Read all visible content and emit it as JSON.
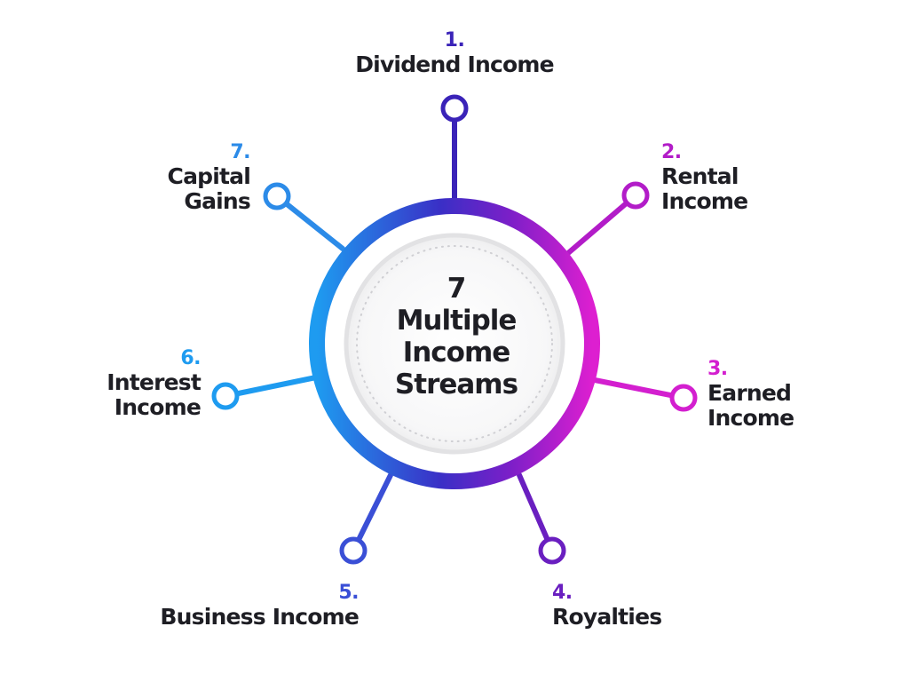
{
  "colors": {
    "blue": "#1e9bf0",
    "indigo": "#3a2fc6",
    "violet": "#6a1fc0",
    "magenta": "#d31fcf",
    "text": "#1e1e24"
  },
  "center": {
    "number": "7",
    "line1": "Multiple",
    "line2": "Income",
    "line3": "Streams"
  },
  "streams": [
    {
      "num": "1.",
      "lines": [
        "Dividend Income"
      ],
      "color": "#3a23b8"
    },
    {
      "num": "2.",
      "lines": [
        "Rental",
        "Income"
      ],
      "color": "#b21cc8"
    },
    {
      "num": "3.",
      "lines": [
        "Earned",
        "Income"
      ],
      "color": "#d31fcf"
    },
    {
      "num": "4.",
      "lines": [
        "Royalties"
      ],
      "color": "#6a1fc0"
    },
    {
      "num": "5.",
      "lines": [
        "Business Income"
      ],
      "color": "#3a4fd6"
    },
    {
      "num": "6.",
      "lines": [
        "Interest",
        "Income"
      ],
      "color": "#1e9bf0"
    },
    {
      "num": "7.",
      "lines": [
        "Capital",
        "Gains"
      ],
      "color": "#2c8be8"
    }
  ]
}
